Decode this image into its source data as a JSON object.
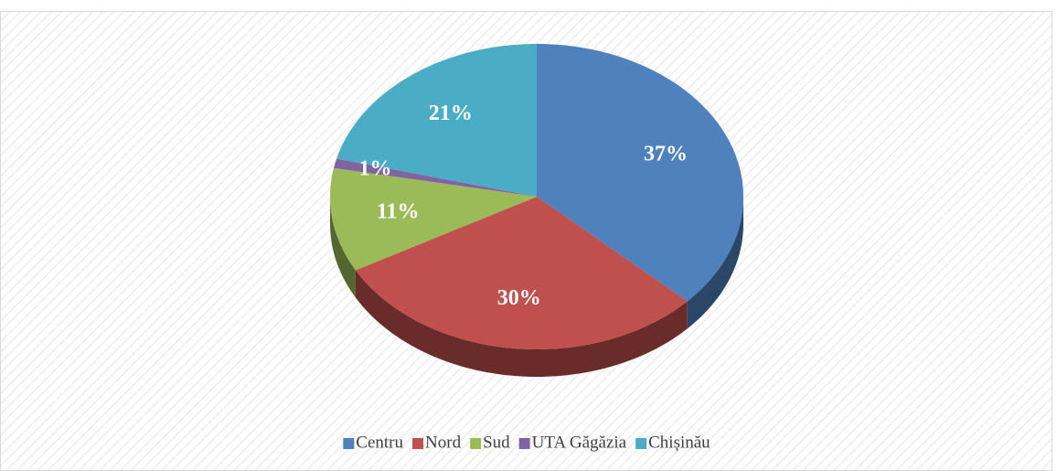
{
  "chart_data": {
    "type": "pie",
    "categories": [
      "Centru",
      "Nord",
      "Sud",
      "UTA Găgăzia",
      "Chișinău"
    ],
    "values": [
      37,
      30,
      11,
      1,
      21
    ],
    "value_labels": [
      "37%",
      "30%",
      "11%",
      "1%",
      "21%"
    ],
    "colors": [
      "#4f81bd",
      "#c0504d",
      "#9bbb59",
      "#8064a2",
      "#4bacc6"
    ],
    "legend": "bottom"
  }
}
